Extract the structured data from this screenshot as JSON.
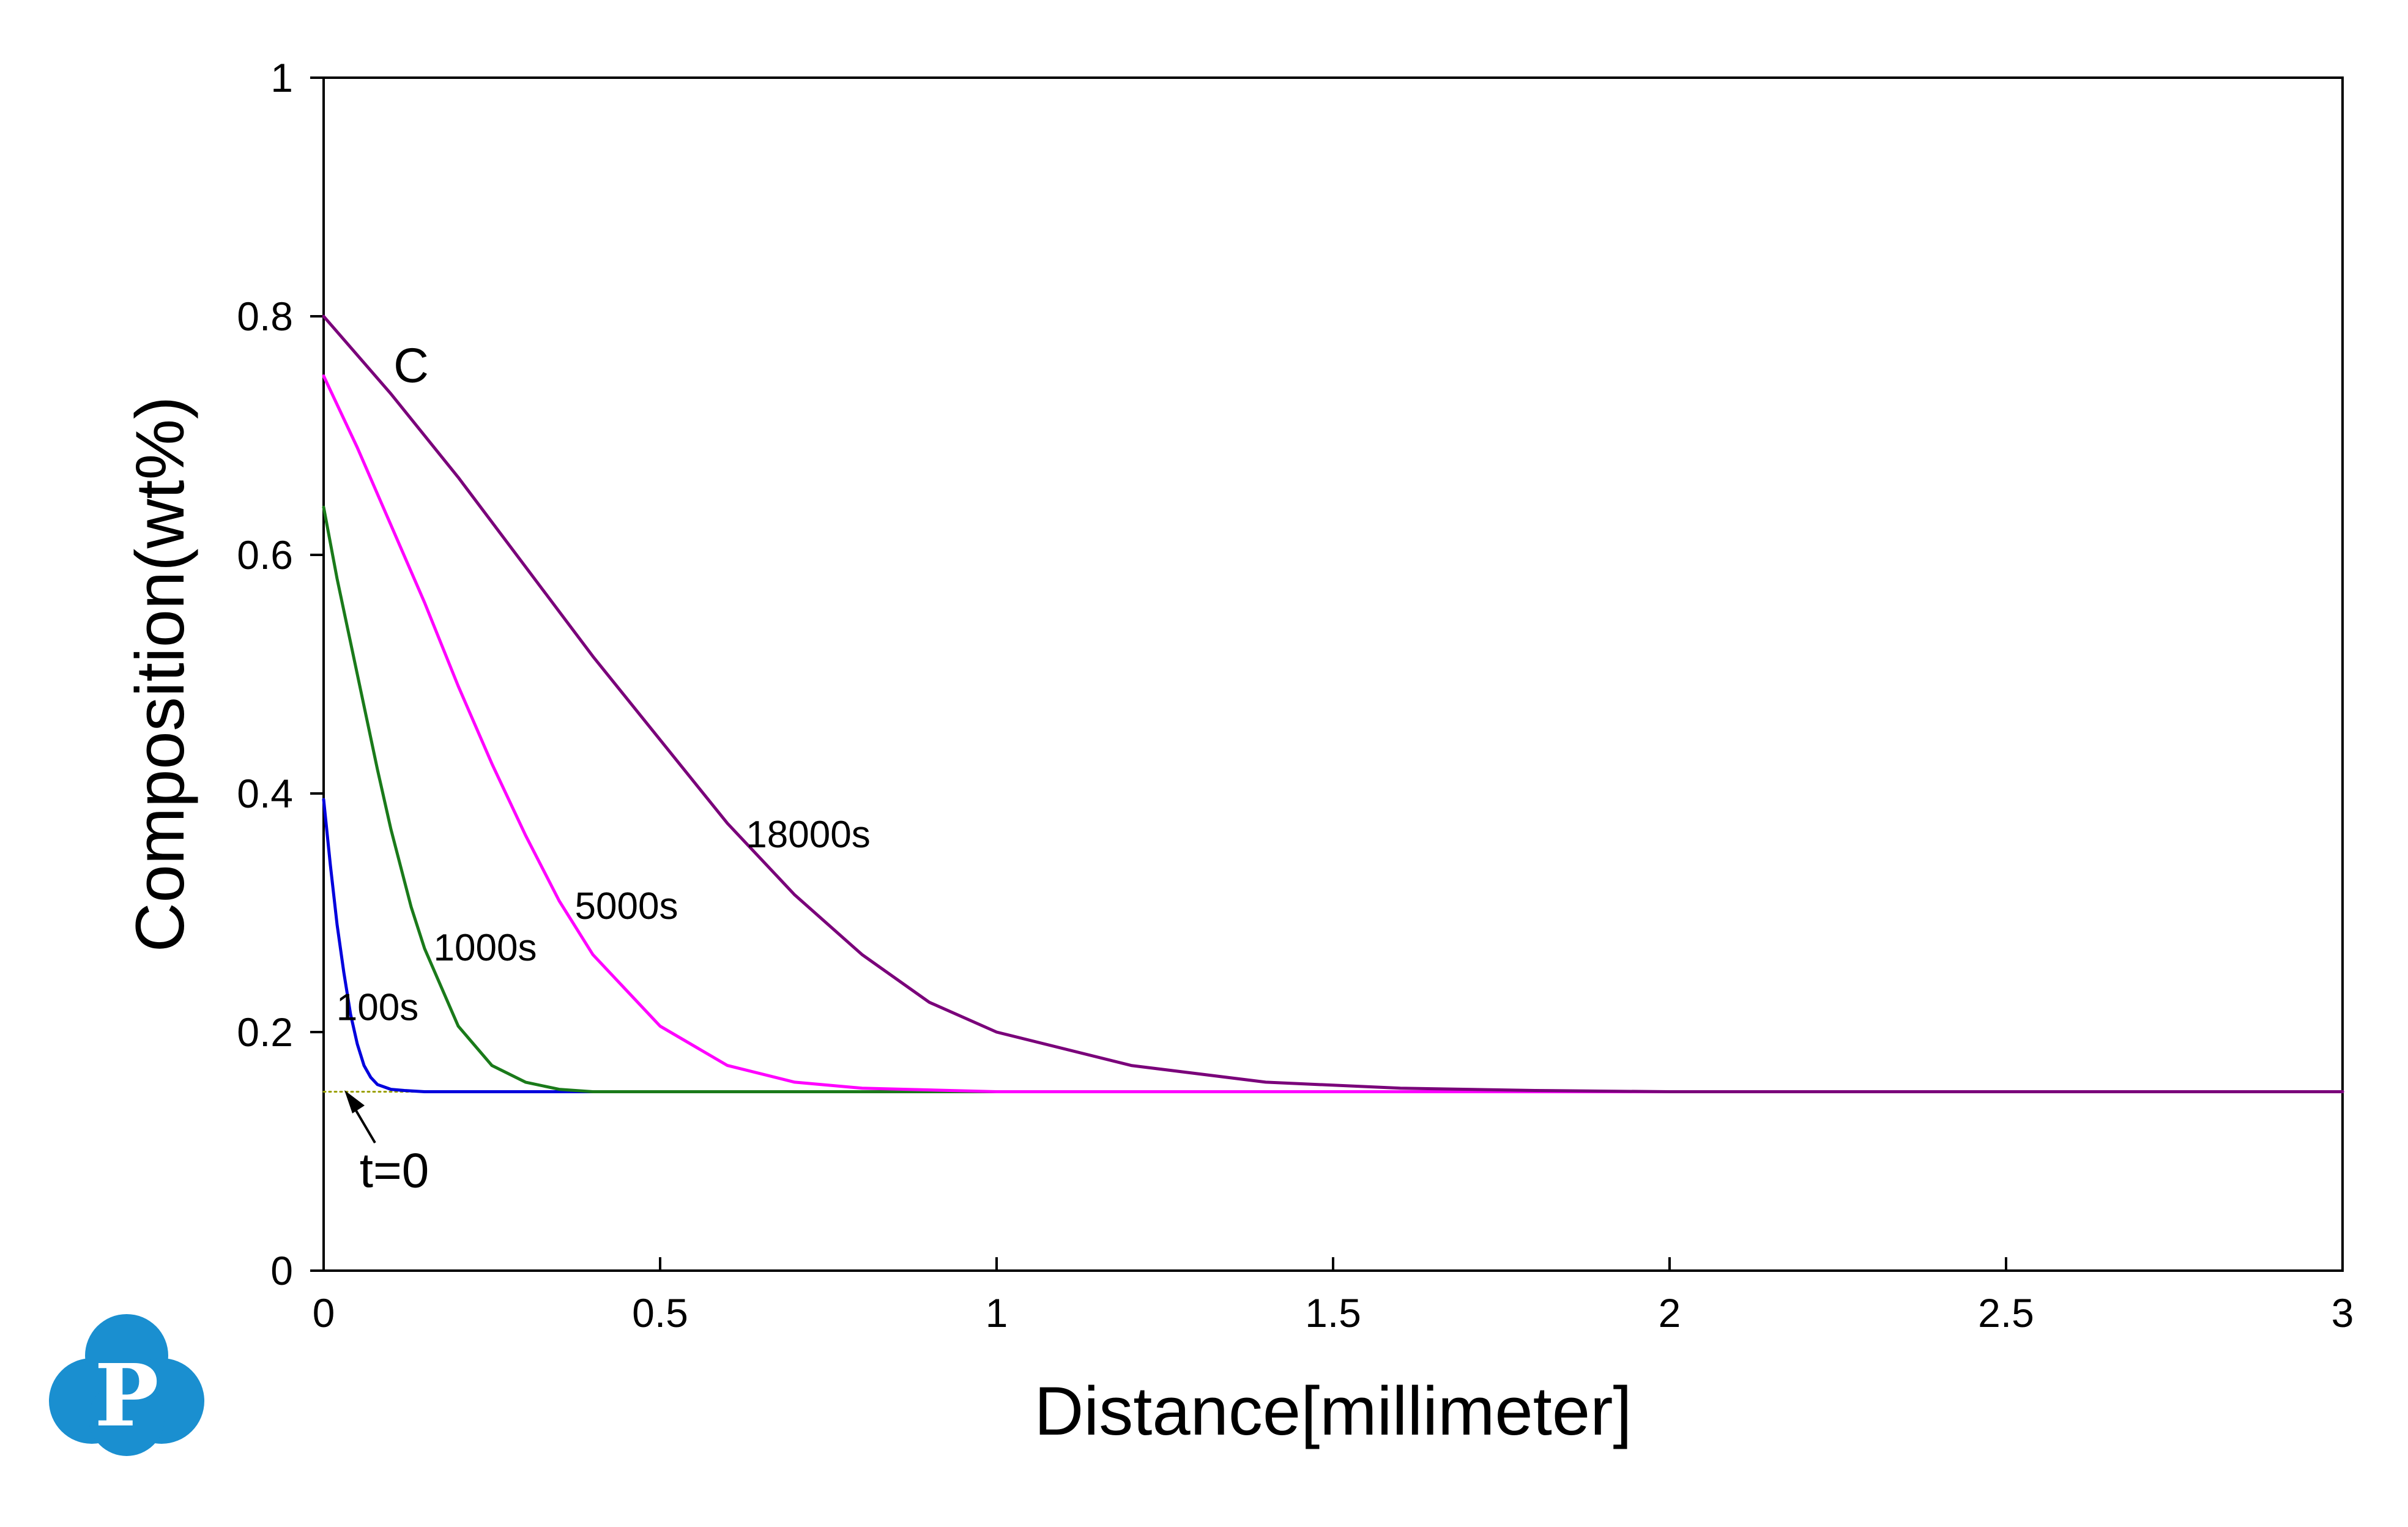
{
  "chart_data": {
    "type": "line",
    "title": "",
    "xlabel": "Distance[millimeter]",
    "ylabel": "Composition(wt%)",
    "xlim": [
      0,
      3
    ],
    "ylim": [
      0,
      1
    ],
    "xticks": [
      "0",
      "0.5",
      "1",
      "1.5",
      "2",
      "2.5",
      "3"
    ],
    "yticks": [
      "0",
      "0.2",
      "0.4",
      "0.6",
      "0.8",
      "1"
    ],
    "grid": false,
    "legend": "none",
    "element_label": "C",
    "series": [
      {
        "name": "t=0",
        "color": "#9aa000",
        "style": "dotted",
        "x": [
          0,
          3
        ],
        "y": [
          0.15,
          0.15
        ]
      },
      {
        "name": "100s",
        "color": "#0000dd",
        "x": [
          0,
          0.01,
          0.02,
          0.03,
          0.04,
          0.05,
          0.06,
          0.07,
          0.08,
          0.1,
          0.12,
          0.15,
          0.2,
          3
        ],
        "y": [
          0.395,
          0.34,
          0.29,
          0.25,
          0.215,
          0.19,
          0.172,
          0.162,
          0.156,
          0.152,
          0.151,
          0.15,
          0.15,
          0.15
        ]
      },
      {
        "name": "1000s",
        "color": "#1a7a1a",
        "x": [
          0,
          0.02,
          0.05,
          0.08,
          0.1,
          0.13,
          0.15,
          0.2,
          0.25,
          0.3,
          0.35,
          0.4,
          0.5,
          3
        ],
        "y": [
          0.64,
          0.58,
          0.5,
          0.42,
          0.37,
          0.305,
          0.27,
          0.205,
          0.172,
          0.158,
          0.152,
          0.15,
          0.15,
          0.15
        ]
      },
      {
        "name": "5000s",
        "color": "#ff00ff",
        "x": [
          0,
          0.05,
          0.1,
          0.15,
          0.2,
          0.25,
          0.3,
          0.35,
          0.4,
          0.5,
          0.6,
          0.7,
          0.8,
          1.0,
          3
        ],
        "y": [
          0.75,
          0.69,
          0.625,
          0.56,
          0.49,
          0.425,
          0.365,
          0.31,
          0.265,
          0.205,
          0.172,
          0.158,
          0.153,
          0.15,
          0.15
        ]
      },
      {
        "name": "18000s",
        "color": "#7a007a",
        "x": [
          0,
          0.1,
          0.2,
          0.3,
          0.4,
          0.5,
          0.6,
          0.7,
          0.8,
          0.9,
          1.0,
          1.2,
          1.4,
          1.6,
          1.8,
          2.0,
          3
        ],
        "y": [
          0.8,
          0.735,
          0.665,
          0.59,
          0.515,
          0.445,
          0.375,
          0.315,
          0.265,
          0.225,
          0.2,
          0.172,
          0.158,
          0.153,
          0.151,
          0.15,
          0.15
        ]
      }
    ],
    "annotations": [
      {
        "text": "100s",
        "x": 0.08,
        "y": 0.21
      },
      {
        "text": "1000s",
        "x": 0.24,
        "y": 0.26
      },
      {
        "text": "5000s",
        "x": 0.45,
        "y": 0.295
      },
      {
        "text": "18000s",
        "x": 0.72,
        "y": 0.355
      },
      {
        "text": "C",
        "x": 0.13,
        "y": 0.745
      },
      {
        "text": "t=0",
        "x": 0.105,
        "y": 0.07
      }
    ]
  },
  "logo": {
    "letter": "P",
    "color": "#1a8fd0"
  }
}
